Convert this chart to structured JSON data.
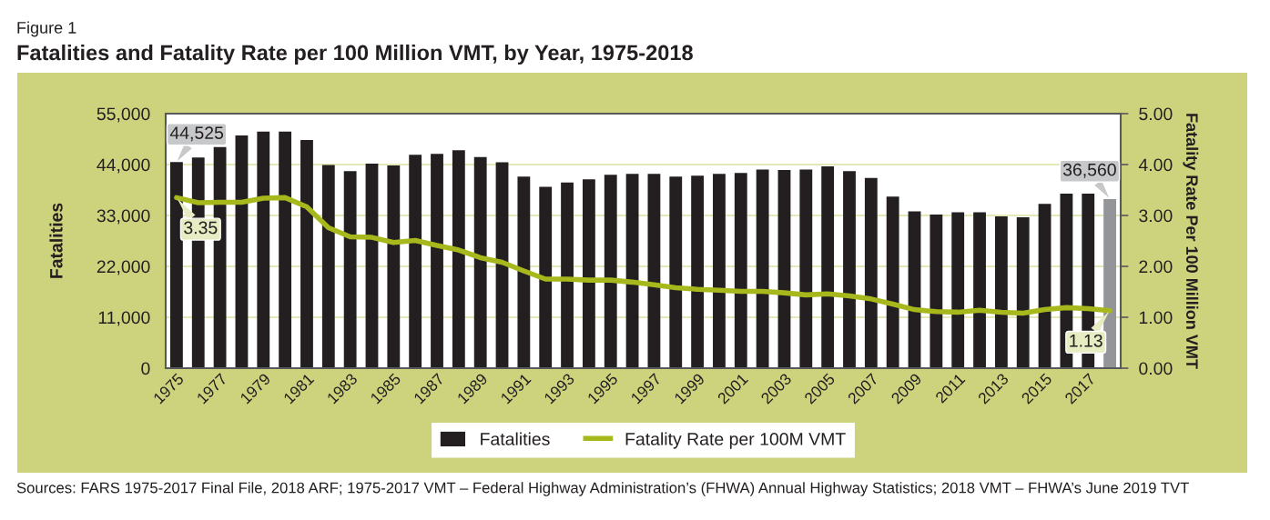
{
  "chart_data": {
    "type": "bar",
    "title": "Fatalities and Fatality Rate per 100 Million VMT, by Year, 1975-2018",
    "annotations": [
      "Figure 1",
      "Sources: FARS 1975-2017 Final File, 2018 ARF; 1975-2017 VMT – Federal Highway Administration’s (FHWA) Annual Highway Statistics; 2018 VMT – FHWA’s June 2019 TVT"
    ],
    "ylabel": "Fatalities",
    "y2label": "Fatality Rate Per 100 Million VMT",
    "categories": [
      "1975",
      null,
      "1977",
      null,
      "1979",
      null,
      "1981",
      null,
      "1983",
      null,
      "1985",
      null,
      "1987",
      null,
      "1989",
      null,
      "1991",
      null,
      "1993",
      null,
      "1995",
      null,
      "1997",
      null,
      "1999",
      null,
      "2001",
      null,
      "2003",
      null,
      "2005",
      null,
      "2007",
      null,
      "2009",
      null,
      "2011",
      null,
      "2013",
      null,
      "2015",
      null,
      "2017",
      null
    ],
    "series": [
      {
        "name": "Fatalities",
        "color": "#231f20",
        "colors": [
          "#231f20",
          "#231f20",
          "#231f20",
          "#231f20",
          "#231f20",
          "#231f20",
          "#231f20",
          "#231f20",
          "#231f20",
          "#231f20",
          "#231f20",
          "#231f20",
          "#231f20",
          "#231f20",
          "#231f20",
          "#231f20",
          "#231f20",
          "#231f20",
          "#231f20",
          "#231f20",
          "#231f20",
          "#231f20",
          "#231f20",
          "#231f20",
          "#231f20",
          "#231f20",
          "#231f20",
          "#231f20",
          "#231f20",
          "#231f20",
          "#231f20",
          "#231f20",
          "#231f20",
          "#231f20",
          "#231f20",
          "#231f20",
          "#231f20",
          "#231f20",
          "#231f20",
          "#231f20",
          "#231f20",
          "#231f20",
          "#231f20",
          "#939598"
        ],
        "values": [
          44525,
          45500,
          47800,
          50300,
          51100,
          51100,
          49300,
          43900,
          42600,
          44200,
          43800,
          46100,
          46300,
          47100,
          45600,
          44500,
          41400,
          39200,
          40100,
          40800,
          41800,
          42000,
          42000,
          41400,
          41600,
          42000,
          42200,
          42900,
          42800,
          42900,
          43600,
          42600,
          41100,
          37100,
          33900,
          33200,
          33700,
          33700,
          32800,
          32600,
          35500,
          37700,
          37700,
          36560
        ],
        "value_labels": [
          "44,525",
          null,
          null,
          null,
          null,
          null,
          null,
          null,
          null,
          null,
          null,
          null,
          null,
          null,
          null,
          null,
          null,
          null,
          null,
          null,
          null,
          null,
          null,
          null,
          null,
          null,
          null,
          null,
          null,
          null,
          null,
          null,
          null,
          null,
          null,
          null,
          null,
          null,
          null,
          null,
          null,
          null,
          null,
          "36,560"
        ]
      },
      {
        "name": "Fatality Rate per 100M VMT",
        "type": "line",
        "axis": "y2",
        "color": "#a6b81c",
        "values": [
          3.35,
          3.25,
          3.26,
          3.26,
          3.34,
          3.35,
          3.17,
          2.76,
          2.58,
          2.57,
          2.47,
          2.51,
          2.41,
          2.32,
          2.17,
          2.08,
          1.91,
          1.75,
          1.75,
          1.73,
          1.73,
          1.69,
          1.64,
          1.58,
          1.55,
          1.53,
          1.51,
          1.51,
          1.48,
          1.44,
          1.46,
          1.42,
          1.36,
          1.26,
          1.15,
          1.11,
          1.1,
          1.14,
          1.1,
          1.08,
          1.15,
          1.19,
          1.17,
          1.13
        ],
        "value_labels": [
          "3.35",
          null,
          null,
          null,
          null,
          null,
          null,
          null,
          null,
          null,
          null,
          null,
          null,
          null,
          null,
          null,
          null,
          null,
          null,
          null,
          null,
          null,
          null,
          null,
          null,
          null,
          null,
          null,
          null,
          null,
          null,
          null,
          null,
          null,
          null,
          null,
          null,
          null,
          null,
          null,
          null,
          null,
          null,
          "1.13"
        ]
      }
    ],
    "ylim": [
      0,
      55000
    ],
    "yticks": [
      0,
      {
        "value": 11000,
        "label": "11,000"
      },
      {
        "value": 22000,
        "label": "22,000"
      },
      {
        "value": 33000,
        "label": "33,000"
      },
      {
        "value": 44000,
        "label": "44,000"
      },
      {
        "value": 55000,
        "label": "55,000"
      }
    ],
    "y2lim": [
      0,
      5
    ],
    "y2ticks": [
      {
        "value": 0,
        "label": "0.00"
      },
      {
        "value": 1,
        "label": "1.00"
      },
      {
        "value": 2,
        "label": "2.00"
      },
      {
        "value": 3,
        "label": "3.00"
      },
      {
        "value": 4,
        "label": "4.00"
      },
      {
        "value": 5,
        "label": "5.00"
      }
    ],
    "grid": "y",
    "legend": "bottom"
  }
}
